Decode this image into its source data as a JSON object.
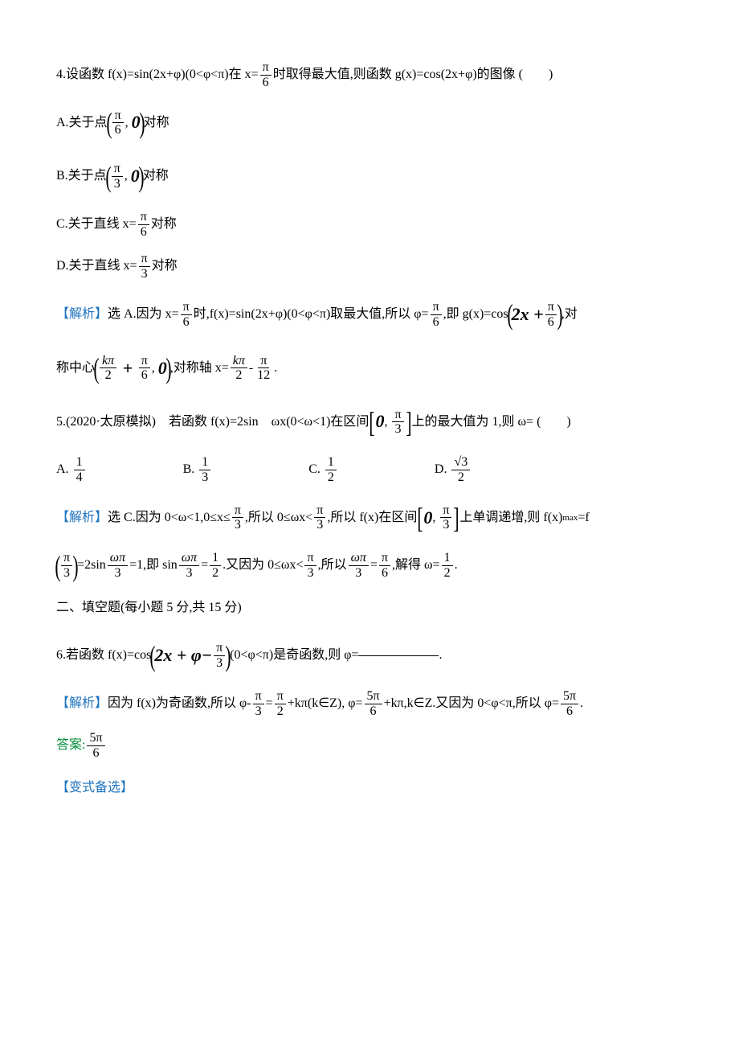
{
  "q4": {
    "stem_a": "4.设函数 f(x)=sin(2x+φ)(0<φ<π)在 x=",
    "stem_b": "时取得最大值,则函数 g(x)=cos(2x+φ)的图像 (　　)",
    "optA_a": "A.关于点",
    "optA_b": "对称",
    "optB_a": "B.关于点",
    "optB_b": "对称",
    "optC_a": "C.关于直线 x=",
    "optC_b": "对称",
    "optD_a": "D.关于直线 x=",
    "optD_b": "对称",
    "sol_label": "【解析】",
    "sol_a": "选 A.因为 x=",
    "sol_b": "时,f(x)=sin(2x+φ)(0<φ<π)取最大值,所以 φ=",
    "sol_c": ",即 g(x)=cos",
    "sol_d": ",对",
    "sol_e": "称中心",
    "sol_f": ",对称轴 x=",
    "sol_g": "-",
    "sol_h": ".",
    "frac_pi6_num": "π",
    "frac_pi6_den": "6",
    "frac_pi3_num": "π",
    "frac_pi3_den": "3",
    "frac_kpi2_num": "kπ",
    "frac_kpi2_den": "2",
    "frac_pi12_num": "π",
    "frac_pi12_den": "12",
    "expr_2xplus": "2x + ",
    "zero_big": "0"
  },
  "q5": {
    "stem_a": "5.(2020·太原模拟)　若函数 f(x)=2sin　ωx(0<ω<1)在区间",
    "stem_b": "上的最大值为 1,则 ω= (　　)",
    "optA": "A.",
    "valA_num": "1",
    "valA_den": "4",
    "optB": "B.",
    "valB_num": "1",
    "valB_den": "3",
    "optC": "C.",
    "valC_num": "1",
    "valC_den": "2",
    "optD": "D.",
    "valD_num": "√3",
    "valD_den": "2",
    "sol_label": "【解析】",
    "sol_a": "选 C.因为 0<ω<1,0≤x≤",
    "sol_b": ",所以 0≤ωx<",
    "sol_c": ",所以 f(x)在区间",
    "sol_d": "上单调递增,则 f(x)",
    "sol_max": "max",
    "sol_e": "=f",
    "sol_f": "=2sin",
    "sol_g": "=1,即 sin",
    "sol_h": "=",
    "sol_i": ".又因为 0≤ωx<",
    "sol_j": ",所以",
    "sol_k": "=",
    "sol_l": ",解得 ω=",
    "sol_m": ".",
    "frac_pi3_num": "π",
    "frac_pi3_den": "3",
    "frac_wpi3_num": "ωπ",
    "frac_wpi3_den": "3",
    "frac_12_num": "1",
    "frac_12_den": "2",
    "frac_pi6_num": "π",
    "frac_pi6_den": "6",
    "zero_big": "0"
  },
  "section2": "二、填空题(每小题 5 分,共 15 分)",
  "q6": {
    "stem_a": "6.若函数 f(x)=cos",
    "stem_b": "(0<φ<π)是奇函数,则 φ=",
    "stem_c": ".",
    "expr_2xplus": "2x + φ−",
    "frac_pi3_num": "π",
    "frac_pi3_den": "3",
    "sol_label": "【解析】",
    "sol_a": "因为 f(x)为奇函数,所以 φ-",
    "sol_b": "=",
    "sol_c": "+kπ(k∈Z), φ=",
    "sol_d": "+kπ,k∈Z.又因为 0<φ<π,所以 φ=",
    "sol_e": ".",
    "frac_pi2_num": "π",
    "frac_pi2_den": "2",
    "frac_5pi6_num": "5π",
    "frac_5pi6_den": "6",
    "ans_label": "答案:",
    "variant_label": "【变式备选】"
  }
}
